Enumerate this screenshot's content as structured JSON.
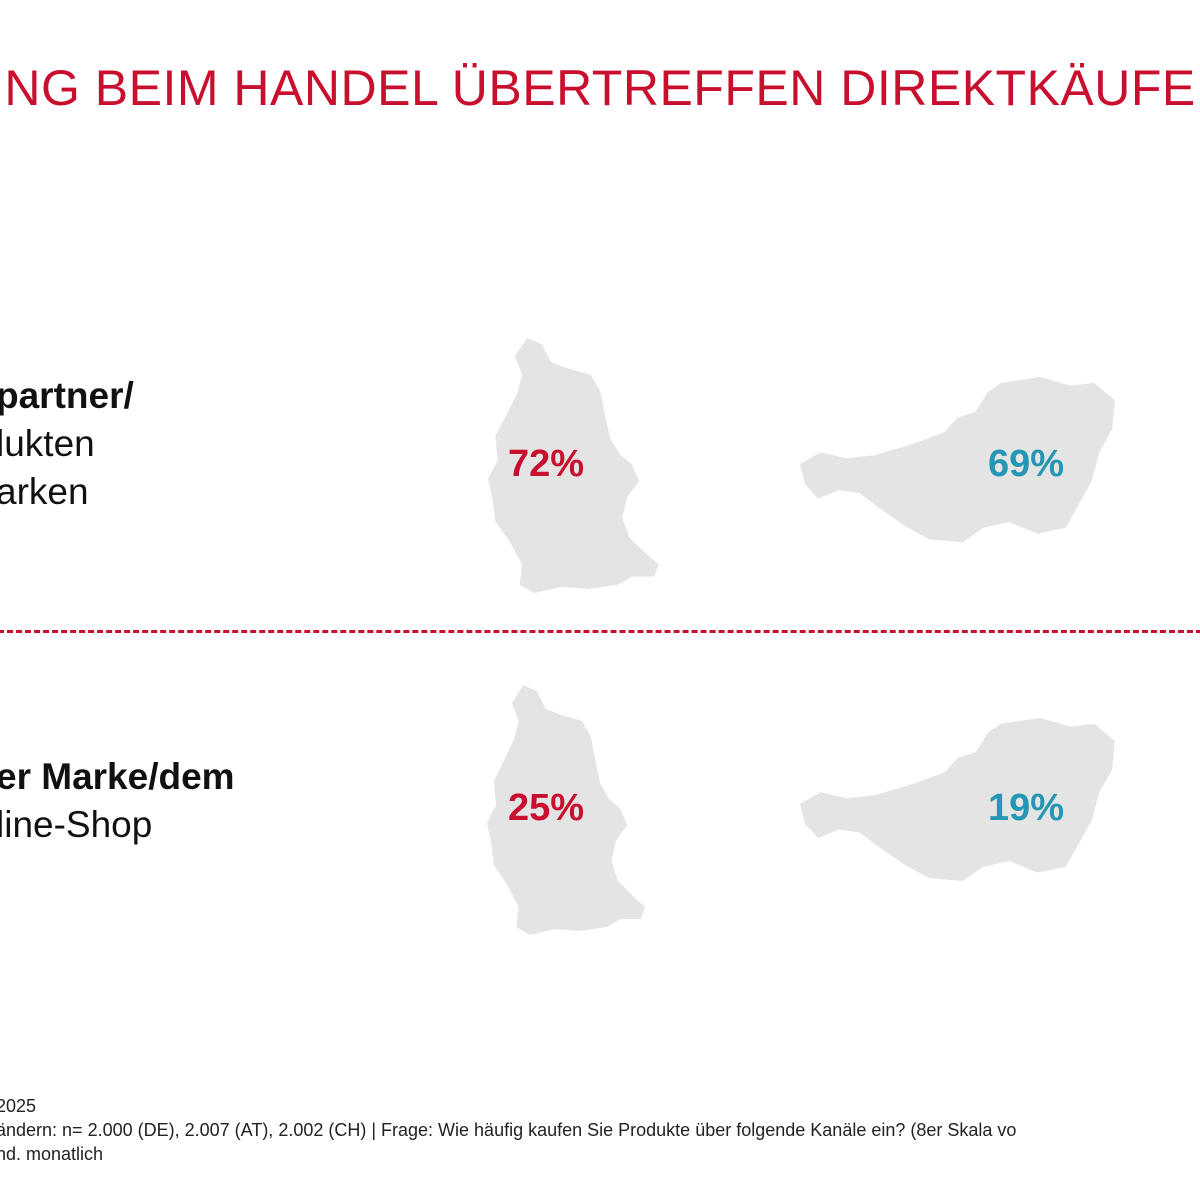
{
  "title": "ING BEIM HANDEL ÜBERTREFFEN DIREKTKÄUFE B",
  "colors": {
    "de": "#c8102e",
    "at": "#2596b4",
    "map_fill": "#e4e4e4",
    "divider": "#c8102e"
  },
  "rows": [
    {
      "label_bold": "partner/",
      "label_lines": [
        "lukten",
        "arken"
      ]
    },
    {
      "label_bold": "er Marke/dem",
      "label_lines": [
        "line-Shop"
      ]
    }
  ],
  "chart_data": {
    "type": "table",
    "rows": [
      {
        "label": "partner/ lukten arken",
        "values": [
          {
            "country_icon": "germany-map-icon",
            "value": 72,
            "label": "72%"
          },
          {
            "country_icon": "austria-map-icon",
            "value": 69,
            "label": "69%"
          }
        ]
      },
      {
        "label": "er Marke/dem line-Shop",
        "values": [
          {
            "country_icon": "germany-map-icon",
            "value": 25,
            "label": "25%"
          },
          {
            "country_icon": "austria-map-icon",
            "value": 19,
            "label": "19%"
          }
        ]
      }
    ]
  },
  "footnote": {
    "line1": "2025",
    "line2": "ändern: n= 2.000 (DE), 2.007 (AT), 2.002 (CH) | Frage: Wie häufig kaufen Sie Produkte über folgende Kanäle ein? (8er Skala vo",
    "line3": "nd. monatlich"
  }
}
